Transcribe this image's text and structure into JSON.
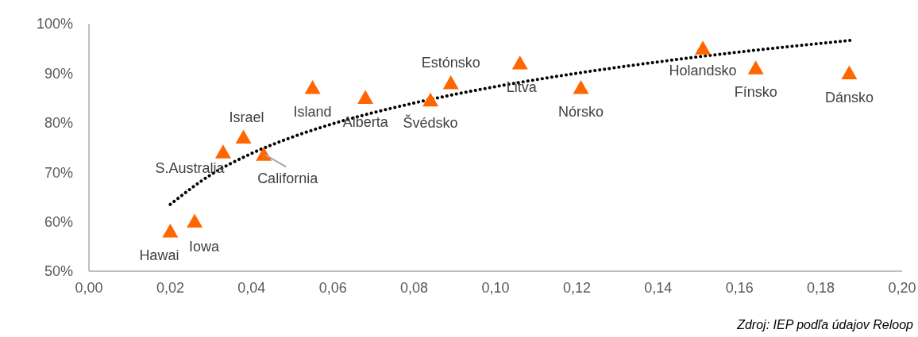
{
  "chart_data": {
    "type": "scatter",
    "xlim": [
      0,
      0.2
    ],
    "xticks": [
      {
        "value": 0,
        "label": "0,00"
      },
      {
        "value": 0.02,
        "label": "0,02"
      },
      {
        "value": 0.04,
        "label": "0,04"
      },
      {
        "value": 0.06,
        "label": "0,06"
      },
      {
        "value": 0.08,
        "label": "0,08"
      },
      {
        "value": 0.1,
        "label": "0,10"
      },
      {
        "value": 0.12,
        "label": "0,12"
      },
      {
        "value": 0.14,
        "label": "0,14"
      },
      {
        "value": 0.16,
        "label": "0,16"
      },
      {
        "value": 0.18,
        "label": "0,18"
      },
      {
        "value": 0.2,
        "label": "0,20"
      }
    ],
    "ylim": [
      50,
      100
    ],
    "yticks": [
      {
        "value": 50,
        "label": "50%"
      },
      {
        "value": 60,
        "label": "60%"
      },
      {
        "value": 70,
        "label": "70%"
      },
      {
        "value": 80,
        "label": "80%"
      },
      {
        "value": 90,
        "label": "90%"
      },
      {
        "value": 100,
        "label": "100%"
      }
    ],
    "grid": false,
    "legend": false,
    "series": [
      {
        "color": "#ff6600",
        "marker": "triangle",
        "x": [
          0.02,
          0.026,
          0.033,
          0.038,
          0.043,
          0.055,
          0.068,
          0.084,
          0.089,
          0.106,
          0.121,
          0.151,
          0.164,
          0.187
        ],
        "values": [
          58,
          60,
          74,
          77,
          73.5,
          87,
          85,
          84.5,
          88,
          92,
          87,
          95,
          91,
          90
        ]
      },
      {
        "type": "line",
        "color": "#000000",
        "marker": "none",
        "line_style": "dotted",
        "x": [
          0.02,
          0.03,
          0.04,
          0.05,
          0.06,
          0.08,
          0.1,
          0.12,
          0.14,
          0.16,
          0.188
        ],
        "values": [
          63.5,
          69.5,
          73.8,
          77.1,
          79.8,
          84.0,
          87.3,
          90.0,
          92.3,
          94.3,
          96.7
        ]
      }
    ],
    "annotations": [
      {
        "text": "Hawai",
        "x": 0.02,
        "y": 58
      },
      {
        "text": "Iowa",
        "x": 0.026,
        "y": 60
      },
      {
        "text": "S.Australia",
        "x": 0.033,
        "y": 74
      },
      {
        "text": "Israel",
        "x": 0.038,
        "y": 77
      },
      {
        "text": "California",
        "x": 0.043,
        "y": 73.5
      },
      {
        "text": "Island",
        "x": 0.055,
        "y": 87
      },
      {
        "text": "Alberta",
        "x": 0.068,
        "y": 85
      },
      {
        "text": "Švédsko",
        "x": 0.084,
        "y": 84.5
      },
      {
        "text": "Estónsko",
        "x": 0.089,
        "y": 88
      },
      {
        "text": "Litva",
        "x": 0.106,
        "y": 92
      },
      {
        "text": "Nórsko",
        "x": 0.121,
        "y": 87
      },
      {
        "text": "Holandsko",
        "x": 0.151,
        "y": 95
      },
      {
        "text": "Fínsko",
        "x": 0.164,
        "y": 91
      },
      {
        "text": "Dánsko",
        "x": 0.187,
        "y": 90
      },
      "Zdroj: IEP podľa údajov Reloop"
    ]
  }
}
